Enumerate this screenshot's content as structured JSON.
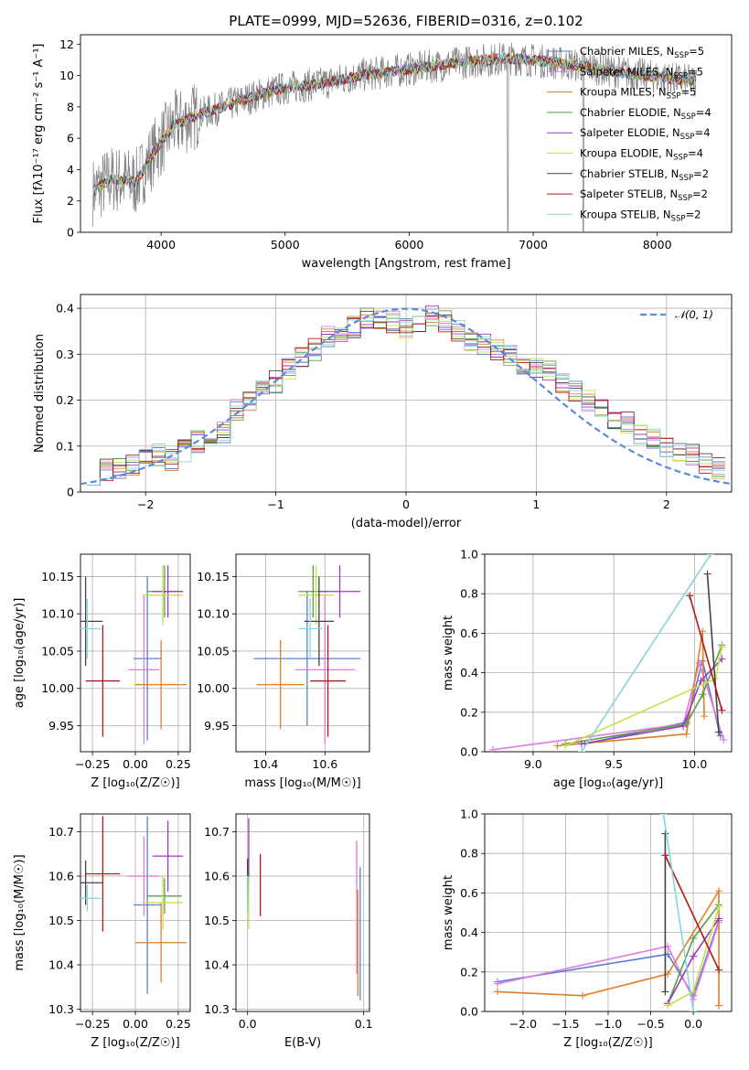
{
  "figure_title": "PLATE=0999, MJD=52636, FIBERID=0316, z=0.102",
  "colors": {
    "Chabrier MILES": "#5b7fd6",
    "Salpeter MILES": "#e07be0",
    "Kroupa MILES": "#e07f2a",
    "Chabrier ELODIE": "#5a9e4a",
    "Salpeter ELODIE": "#9b3bbf",
    "Kroupa ELODIE": "#c8e04a",
    "Chabrier STELIB": "#444444",
    "Salpeter STELIB": "#b11a1a",
    "Kroupa STELIB": "#84d6db",
    "data": "#808080",
    "normal": "#5b8ad6"
  },
  "chart_data": [
    {
      "id": "spectrum",
      "type": "line",
      "title": "PLATE=0999, MJD=52636, FIBERID=0316, z=0.102",
      "xlabel": "wavelength [Angstrom, rest frame]",
      "ylabel": "Flux [fλ10⁻¹⁷ erg cm⁻² s⁻¹ A⁻¹]",
      "xlim": [
        3350,
        8600
      ],
      "ylim": [
        0,
        12.6
      ],
      "xticks": [
        4000,
        5000,
        6000,
        7000,
        8000
      ],
      "yticks": [
        0,
        2,
        4,
        6,
        8,
        10,
        12
      ],
      "legend_position": "top-right",
      "legend": [
        "Chabrier MILES, N_SSP=5",
        "Salpeter MILES, N_SSP=5",
        "Kroupa MILES, N_SSP=5",
        "Chabrier ELODIE, N_SSP=4",
        "Salpeter ELODIE, N_SSP=4",
        "Kroupa ELODIE, N_SSP=4",
        "Chabrier STELIB, N_SSP=2",
        "Salpeter STELIB, N_SSP=2",
        "Kroupa STELIB, N_SSP=2"
      ],
      "continuum": {
        "x": [
          3450,
          3600,
          3800,
          3950,
          4100,
          4300,
          4500,
          4800,
          5000,
          5300,
          5600,
          5900,
          6200,
          6500,
          6800,
          7100,
          7400,
          7700,
          8000,
          8300
        ],
        "y": [
          2.6,
          3.4,
          3.2,
          5.2,
          6.8,
          7.5,
          8.0,
          8.8,
          9.2,
          9.5,
          10.0,
          10.3,
          10.6,
          10.9,
          11.1,
          10.9,
          10.6,
          10.2,
          9.9,
          9.6
        ]
      }
    },
    {
      "id": "residuals",
      "type": "step",
      "xlabel": "(data-model)/error",
      "ylabel": "Normed distribution",
      "xlim": [
        -2.5,
        2.5
      ],
      "ylim": [
        0,
        0.43
      ],
      "xticks": [
        -2,
        -1,
        0,
        1,
        2
      ],
      "yticks": [
        0.0,
        0.1,
        0.2,
        0.3,
        0.4
      ],
      "legend_position": "top-right",
      "legend": [
        "𝒩(0, 1)"
      ],
      "bin_centers": [
        -2.4,
        -2.3,
        -2.2,
        -2.1,
        -2.0,
        -1.9,
        -1.8,
        -1.7,
        -1.6,
        -1.5,
        -1.4,
        -1.3,
        -1.2,
        -1.1,
        -1.0,
        -0.9,
        -0.8,
        -0.7,
        -0.6,
        -0.5,
        -0.4,
        -0.3,
        -0.2,
        -0.1,
        0.0,
        0.1,
        0.2,
        0.3,
        0.4,
        0.5,
        0.6,
        0.7,
        0.8,
        0.9,
        1.0,
        1.1,
        1.2,
        1.3,
        1.4,
        1.5,
        1.6,
        1.7,
        1.8,
        1.9,
        2.0,
        2.1,
        2.2,
        2.3,
        2.4
      ],
      "envelope": [
        0.04,
        0.05,
        0.05,
        0.06,
        0.07,
        0.08,
        0.07,
        0.09,
        0.11,
        0.12,
        0.13,
        0.18,
        0.2,
        0.22,
        0.24,
        0.27,
        0.29,
        0.31,
        0.34,
        0.35,
        0.36,
        0.38,
        0.37,
        0.37,
        0.36,
        0.37,
        0.38,
        0.37,
        0.35,
        0.33,
        0.32,
        0.31,
        0.3,
        0.28,
        0.27,
        0.26,
        0.24,
        0.22,
        0.2,
        0.18,
        0.16,
        0.15,
        0.13,
        0.12,
        0.1,
        0.09,
        0.08,
        0.06,
        0.05
      ]
    },
    {
      "id": "age-vs-Z",
      "type": "errorbar",
      "xlabel": "Z [log₁₀(Z/Z☉)]",
      "ylabel": "age  [log₁₀(age/yr)]",
      "xlim": [
        -0.32,
        0.32
      ],
      "ylim": [
        9.915,
        10.18
      ],
      "xticks": [
        -0.25,
        0.0,
        0.25
      ],
      "xticklabels": [
        "−0.25",
        "0.00",
        "0.25"
      ],
      "yticks": [
        9.95,
        10.0,
        10.05,
        10.1,
        10.15
      ],
      "yticklabels": [
        "9.95",
        "10.00",
        "10.05",
        "10.10",
        "10.15"
      ],
      "points": [
        {
          "model": "Chabrier MILES",
          "x": 0.07,
          "y": 10.04,
          "xerr": 0.08,
          "yerr": 0.11
        },
        {
          "model": "Salpeter MILES",
          "x": 0.05,
          "y": 10.025,
          "xerr": 0.09,
          "yerr": 0.1
        },
        {
          "model": "Kroupa MILES",
          "x": 0.15,
          "y": 10.005,
          "xerr": 0.15,
          "yerr": 0.06
        },
        {
          "model": "Chabrier ELODIE",
          "x": 0.17,
          "y": 10.13,
          "xerr": 0.1,
          "yerr": 0.035
        },
        {
          "model": "Salpeter ELODIE",
          "x": 0.19,
          "y": 10.13,
          "xerr": 0.09,
          "yerr": 0.035
        },
        {
          "model": "Kroupa ELODIE",
          "x": 0.16,
          "y": 10.125,
          "xerr": 0.12,
          "yerr": 0.04
        },
        {
          "model": "Chabrier STELIB",
          "x": -0.29,
          "y": 10.09,
          "xerr": 0.1,
          "yerr": 0.06
        },
        {
          "model": "Salpeter STELIB",
          "x": -0.19,
          "y": 10.01,
          "xerr": 0.1,
          "yerr": 0.075
        },
        {
          "model": "Kroupa STELIB",
          "x": -0.28,
          "y": 10.08,
          "xerr": 0.08,
          "yerr": 0.04
        }
      ]
    },
    {
      "id": "age-vs-mass",
      "type": "errorbar",
      "xlabel": "mass [log₁₀(M/M☉)]",
      "ylabel": "",
      "xlim": [
        10.3,
        10.75
      ],
      "ylim": [
        9.915,
        10.18
      ],
      "xticks": [
        10.4,
        10.6
      ],
      "xticklabels": [
        "10.4",
        "10.6"
      ],
      "yticks": [
        9.95,
        10.0,
        10.05,
        10.1,
        10.15
      ],
      "yticklabels": [
        "9.95",
        "10.00",
        "10.05",
        "10.10",
        "10.15"
      ],
      "points": [
        {
          "model": "Chabrier MILES",
          "x": 10.54,
          "y": 10.04,
          "xerr": 0.18,
          "yerr": 0.09
        },
        {
          "model": "Salpeter MILES",
          "x": 10.6,
          "y": 10.025,
          "xerr": 0.1,
          "yerr": 0.1
        },
        {
          "model": "Kroupa MILES",
          "x": 10.45,
          "y": 10.005,
          "xerr": 0.08,
          "yerr": 0.06
        },
        {
          "model": "Chabrier ELODIE",
          "x": 10.56,
          "y": 10.13,
          "xerr": 0.05,
          "yerr": 0.035
        },
        {
          "model": "Salpeter ELODIE",
          "x": 10.65,
          "y": 10.13,
          "xerr": 0.07,
          "yerr": 0.035
        },
        {
          "model": "Kroupa ELODIE",
          "x": 10.57,
          "y": 10.125,
          "xerr": 0.06,
          "yerr": 0.04
        },
        {
          "model": "Chabrier STELIB",
          "x": 10.58,
          "y": 10.09,
          "xerr": 0.05,
          "yerr": 0.06
        },
        {
          "model": "Salpeter STELIB",
          "x": 10.61,
          "y": 10.01,
          "xerr": 0.06,
          "yerr": 0.075
        },
        {
          "model": "Kroupa STELIB",
          "x": 10.55,
          "y": 10.08,
          "xerr": 0.04,
          "yerr": 0.04
        }
      ]
    },
    {
      "id": "weight-vs-age",
      "type": "line",
      "xlabel": "age  [log₁₀(age/yr)]",
      "ylabel": "mass weight",
      "xlim": [
        8.7,
        10.23
      ],
      "ylim": [
        0,
        1.0
      ],
      "xticks": [
        9.0,
        9.5,
        10.0
      ],
      "xticklabels": [
        "9.0",
        "9.5",
        "10.0"
      ],
      "yticks": [
        0.0,
        0.2,
        0.4,
        0.6,
        0.8,
        1.0
      ],
      "yticklabels": [
        "0.0",
        "0.2",
        "0.4",
        "0.6",
        "0.8",
        "1.0"
      ],
      "series": [
        {
          "model": "Chabrier MILES",
          "x": [
            9.32,
            9.95,
            10.05,
            10.16
          ],
          "y": [
            0.04,
            0.15,
            0.46,
            0.08
          ]
        },
        {
          "model": "Salpeter MILES",
          "x": [
            8.75,
            9.93,
            10.03,
            10.18
          ],
          "y": [
            0.01,
            0.14,
            0.45,
            0.06
          ]
        },
        {
          "model": "Kroupa MILES",
          "x": [
            9.15,
            9.95,
            10.05,
            10.06
          ],
          "y": [
            0.03,
            0.09,
            0.61,
            0.18
          ]
        },
        {
          "model": "Chabrier ELODIE",
          "x": [
            9.2,
            9.95,
            10.05,
            10.17
          ],
          "y": [
            0.04,
            0.14,
            0.29,
            0.54
          ]
        },
        {
          "model": "Salpeter ELODIE",
          "x": [
            9.3,
            9.93,
            10.04,
            10.17
          ],
          "y": [
            0.04,
            0.13,
            0.36,
            0.47
          ]
        },
        {
          "model": "Kroupa ELODIE",
          "x": [
            9.2,
            10.13,
            10.17
          ],
          "y": [
            0.03,
            0.37,
            0.53
          ]
        },
        {
          "model": "Chabrier STELIB",
          "x": [
            10.08,
            10.15
          ],
          "y": [
            0.9,
            0.1
          ]
        },
        {
          "model": "Salpeter STELIB",
          "x": [
            9.97,
            10.17
          ],
          "y": [
            0.79,
            0.21
          ]
        },
        {
          "model": "Kroupa STELIB",
          "x": [
            9.3,
            10.1
          ],
          "y": [
            0.0,
            1.0
          ]
        }
      ]
    },
    {
      "id": "mass-vs-Z",
      "type": "errorbar",
      "xlabel": "Z [log₁₀(Z/Z☉)]",
      "ylabel": "mass [log₁₀(M/M☉)]",
      "xlim": [
        -0.32,
        0.32
      ],
      "ylim": [
        10.295,
        10.74
      ],
      "xticks": [
        -0.25,
        0.0,
        0.25
      ],
      "xticklabels": [
        "−0.25",
        "0.00",
        "0.25"
      ],
      "yticks": [
        10.3,
        10.4,
        10.5,
        10.6,
        10.7
      ],
      "yticklabels": [
        "10.3",
        "10.4",
        "10.5",
        "10.6",
        "10.7"
      ],
      "points": [
        {
          "model": "Chabrier MILES",
          "x": 0.07,
          "y": 10.535,
          "xerr": 0.08,
          "yerr": 0.2
        },
        {
          "model": "Salpeter MILES",
          "x": 0.05,
          "y": 10.6,
          "xerr": 0.09,
          "yerr": 0.09
        },
        {
          "model": "Kroupa MILES",
          "x": 0.15,
          "y": 10.45,
          "xerr": 0.15,
          "yerr": 0.09
        },
        {
          "model": "Chabrier ELODIE",
          "x": 0.17,
          "y": 10.555,
          "xerr": 0.1,
          "yerr": 0.04
        },
        {
          "model": "Salpeter ELODIE",
          "x": 0.19,
          "y": 10.645,
          "xerr": 0.09,
          "yerr": 0.08
        },
        {
          "model": "Kroupa ELODIE",
          "x": 0.16,
          "y": 10.54,
          "xerr": 0.12,
          "yerr": 0.06
        },
        {
          "model": "Chabrier STELIB",
          "x": -0.29,
          "y": 10.585,
          "xerr": 0.1,
          "yerr": 0.05
        },
        {
          "model": "Salpeter STELIB",
          "x": -0.19,
          "y": 10.605,
          "xerr": 0.1,
          "yerr": 0.13
        },
        {
          "model": "Kroupa STELIB",
          "x": -0.28,
          "y": 10.55,
          "xerr": 0.08,
          "yerr": 0.03
        }
      ]
    },
    {
      "id": "mass-vs-EBV",
      "type": "errorbar",
      "xlabel": "E(B-V)",
      "ylabel": "",
      "xlim": [
        -0.01,
        0.105
      ],
      "ylim": [
        10.295,
        10.74
      ],
      "xticks": [
        0.0,
        0.1
      ],
      "xticklabels": [
        "0.0",
        "0.1"
      ],
      "yticks": [
        10.3,
        10.4,
        10.5,
        10.6,
        10.7
      ],
      "yticklabels": [
        "10.3",
        "10.4",
        "10.5",
        "10.6",
        "10.7"
      ],
      "points": [
        {
          "model": "Chabrier MILES",
          "x": 0.097,
          "y": 10.47,
          "xerr": 0,
          "yerr": 0.15
        },
        {
          "model": "Salpeter MILES",
          "x": 0.094,
          "y": 10.53,
          "xerr": 0,
          "yerr": 0.15
        },
        {
          "model": "Kroupa MILES",
          "x": 0.095,
          "y": 10.45,
          "xerr": 0,
          "yerr": 0.12
        },
        {
          "model": "Chabrier ELODIE",
          "x": 0.0,
          "y": 10.58,
          "xerr": 0,
          "yerr": 0.05
        },
        {
          "model": "Salpeter ELODIE",
          "x": 0.001,
          "y": 10.66,
          "xerr": 0,
          "yerr": 0.07
        },
        {
          "model": "Kroupa ELODIE",
          "x": 0.001,
          "y": 10.54,
          "xerr": 0,
          "yerr": 0.06
        },
        {
          "model": "Chabrier STELIB",
          "x": 0.0,
          "y": 10.6,
          "xerr": 0,
          "yerr": 0.04
        },
        {
          "model": "Salpeter STELIB",
          "x": 0.011,
          "y": 10.58,
          "xerr": 0,
          "yerr": 0.07
        },
        {
          "model": "Kroupa STELIB",
          "x": 0.0,
          "y": 10.56,
          "xerr": 0,
          "yerr": 0.04
        }
      ]
    },
    {
      "id": "weight-vs-Z",
      "type": "line",
      "xlabel": "Z [log₁₀(Z/Z☉)]",
      "ylabel": "mass weight",
      "xlim": [
        -2.45,
        0.45
      ],
      "ylim": [
        0,
        1.0
      ],
      "xticks": [
        -2.0,
        -1.5,
        -1.0,
        -0.5,
        0.0
      ],
      "xticklabels": [
        "−2.0",
        "−1.5",
        "−1.0",
        "−0.5",
        "0.0"
      ],
      "yticks": [
        0.0,
        0.2,
        0.4,
        0.6,
        0.8,
        1.0
      ],
      "yticklabels": [
        "0.0",
        "0.2",
        "0.4",
        "0.6",
        "0.8",
        "1.0"
      ],
      "series": [
        {
          "model": "Chabrier MILES",
          "x": [
            -2.3,
            -0.3,
            0.0,
            0.3
          ],
          "y": [
            0.15,
            0.29,
            0.08,
            0.46
          ]
        },
        {
          "model": "Salpeter MILES",
          "x": [
            -2.3,
            -0.3,
            0.0,
            0.3
          ],
          "y": [
            0.14,
            0.33,
            0.06,
            0.45
          ]
        },
        {
          "model": "Kroupa MILES",
          "x": [
            -2.3,
            -1.3,
            -0.3,
            0.3,
            0.3
          ],
          "y": [
            0.1,
            0.08,
            0.19,
            0.61,
            0.03
          ]
        },
        {
          "model": "Chabrier ELODIE",
          "x": [
            -0.3,
            0.0,
            0.3
          ],
          "y": [
            0.04,
            0.37,
            0.54
          ]
        },
        {
          "model": "Salpeter ELODIE",
          "x": [
            -0.3,
            0.0,
            0.3
          ],
          "y": [
            0.04,
            0.28,
            0.47
          ]
        },
        {
          "model": "Kroupa ELODIE",
          "x": [
            -0.3,
            0.0,
            0.3
          ],
          "y": [
            0.03,
            0.1,
            0.53
          ]
        },
        {
          "model": "Chabrier STELIB",
          "x": [
            -0.33,
            -0.33
          ],
          "y": [
            0.9,
            0.1
          ]
        },
        {
          "model": "Salpeter STELIB",
          "x": [
            -0.33,
            0.3
          ],
          "y": [
            0.79,
            0.21
          ]
        },
        {
          "model": "Kroupa STELIB",
          "x": [
            -0.35,
            0.0
          ],
          "y": [
            1.0,
            0.0
          ]
        }
      ]
    }
  ]
}
